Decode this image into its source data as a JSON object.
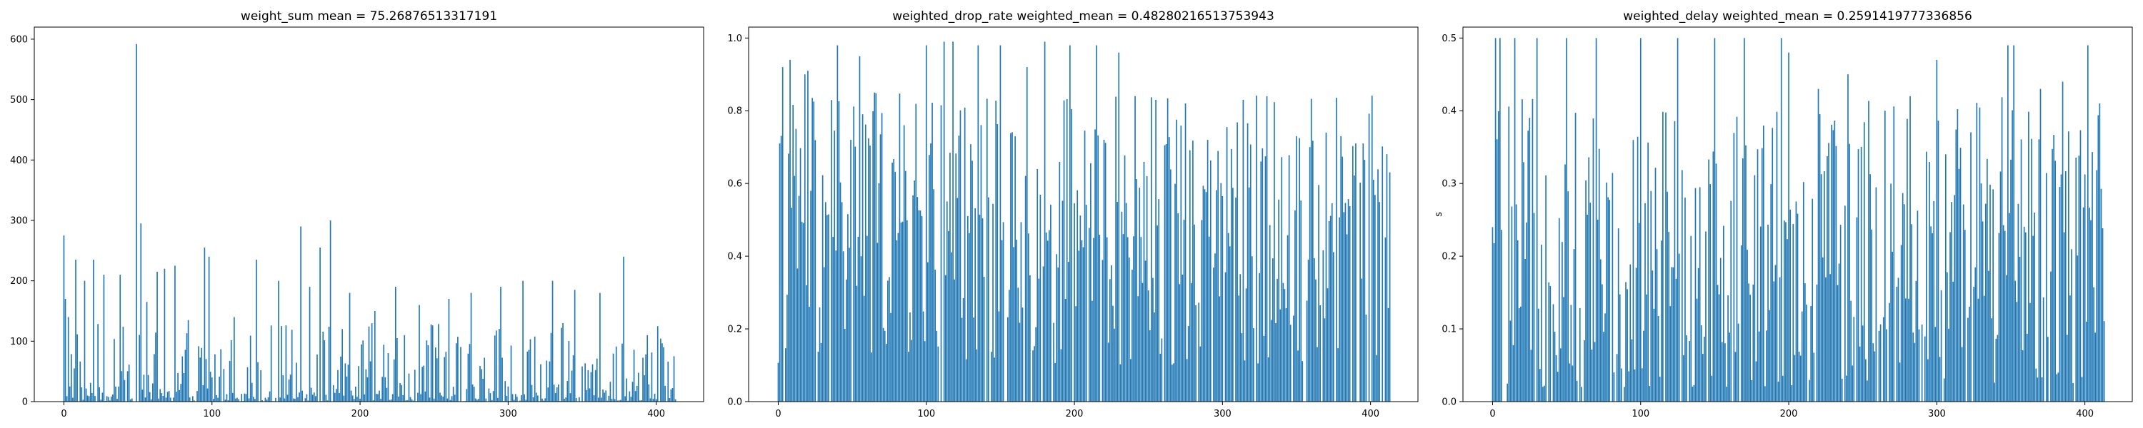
{
  "bar_color": "#1f77b4",
  "chart_data": [
    {
      "type": "bar",
      "title": "weight_sum mean = 75.26876513317191",
      "ylabel": "",
      "xlim": [
        -20,
        432
      ],
      "ylim": [
        0,
        620
      ],
      "xticks": [
        0,
        100,
        200,
        300,
        400
      ],
      "yticks": [
        0,
        100,
        200,
        300,
        400,
        500,
        600
      ],
      "n_bars": 414,
      "peaks": [
        {
          "x": 0,
          "y": 275
        },
        {
          "x": 1,
          "y": 170
        },
        {
          "x": 3,
          "y": 140
        },
        {
          "x": 8,
          "y": 235
        },
        {
          "x": 14,
          "y": 200
        },
        {
          "x": 20,
          "y": 235
        },
        {
          "x": 27,
          "y": 210
        },
        {
          "x": 38,
          "y": 210
        },
        {
          "x": 49,
          "y": 592
        },
        {
          "x": 52,
          "y": 295
        },
        {
          "x": 56,
          "y": 165
        },
        {
          "x": 63,
          "y": 215
        },
        {
          "x": 68,
          "y": 220
        },
        {
          "x": 75,
          "y": 225
        },
        {
          "x": 84,
          "y": 135
        },
        {
          "x": 95,
          "y": 255
        },
        {
          "x": 98,
          "y": 240
        },
        {
          "x": 115,
          "y": 140
        },
        {
          "x": 130,
          "y": 235
        },
        {
          "x": 145,
          "y": 200
        },
        {
          "x": 160,
          "y": 290
        },
        {
          "x": 166,
          "y": 190
        },
        {
          "x": 173,
          "y": 255
        },
        {
          "x": 180,
          "y": 300
        },
        {
          "x": 193,
          "y": 180
        },
        {
          "x": 210,
          "y": 150
        },
        {
          "x": 224,
          "y": 190
        },
        {
          "x": 240,
          "y": 160
        },
        {
          "x": 260,
          "y": 170
        },
        {
          "x": 275,
          "y": 180
        },
        {
          "x": 295,
          "y": 190
        },
        {
          "x": 310,
          "y": 200
        },
        {
          "x": 330,
          "y": 200
        },
        {
          "x": 345,
          "y": 185
        },
        {
          "x": 362,
          "y": 180
        },
        {
          "x": 378,
          "y": 240
        },
        {
          "x": 394,
          "y": 110
        },
        {
          "x": 405,
          "y": 90
        }
      ],
      "mean": 75.26876513317191
    },
    {
      "type": "bar",
      "title": "weighted_drop_rate weighted_mean = 0.48280216513753943",
      "ylabel": "",
      "xlim": [
        -20,
        432
      ],
      "ylim": [
        0,
        1.03
      ],
      "xticks": [
        0,
        100,
        200,
        300,
        400
      ],
      "yticks": [
        0.0,
        0.2,
        0.4,
        0.6,
        0.8,
        1.0
      ],
      "n_bars": 414,
      "peaks": [
        {
          "x": 1,
          "y": 0.71
        },
        {
          "x": 3,
          "y": 0.92
        },
        {
          "x": 8,
          "y": 0.94
        },
        {
          "x": 12,
          "y": 0.75
        },
        {
          "x": 18,
          "y": 0.9
        },
        {
          "x": 20,
          "y": 0.91
        },
        {
          "x": 40,
          "y": 0.98
        },
        {
          "x": 55,
          "y": 0.95
        },
        {
          "x": 65,
          "y": 0.85
        },
        {
          "x": 100,
          "y": 0.98
        },
        {
          "x": 112,
          "y": 0.99
        },
        {
          "x": 118,
          "y": 0.99
        },
        {
          "x": 135,
          "y": 0.98
        },
        {
          "x": 150,
          "y": 0.98
        },
        {
          "x": 168,
          "y": 0.92
        },
        {
          "x": 180,
          "y": 0.99
        },
        {
          "x": 197,
          "y": 0.98
        },
        {
          "x": 215,
          "y": 0.98
        },
        {
          "x": 230,
          "y": 0.96
        },
        {
          "x": 255,
          "y": 0.83
        },
        {
          "x": 275,
          "y": 0.82
        },
        {
          "x": 290,
          "y": 0.72
        },
        {
          "x": 330,
          "y": 0.84
        },
        {
          "x": 350,
          "y": 0.73
        },
        {
          "x": 370,
          "y": 0.74
        },
        {
          "x": 380,
          "y": 0.73
        },
        {
          "x": 395,
          "y": 0.71
        }
      ],
      "weighted_mean": 0.48280216513753943
    },
    {
      "type": "bar",
      "title": "weighted_delay weighted_mean = 0.2591419777336856",
      "ylabel": "s",
      "xlim": [
        -20,
        432
      ],
      "ylim": [
        0,
        0.515
      ],
      "xticks": [
        0,
        100,
        200,
        300,
        400
      ],
      "yticks": [
        0.0,
        0.1,
        0.2,
        0.3,
        0.4,
        0.5
      ],
      "n_bars": 414,
      "peaks": [
        {
          "x": 0,
          "y": 0.24
        },
        {
          "x": 2,
          "y": 0.5
        },
        {
          "x": 5,
          "y": 0.5
        },
        {
          "x": 15,
          "y": 0.5
        },
        {
          "x": 30,
          "y": 0.5
        },
        {
          "x": 50,
          "y": 0.5
        },
        {
          "x": 70,
          "y": 0.5
        },
        {
          "x": 100,
          "y": 0.5
        },
        {
          "x": 125,
          "y": 0.5
        },
        {
          "x": 150,
          "y": 0.5
        },
        {
          "x": 170,
          "y": 0.5
        },
        {
          "x": 195,
          "y": 0.5
        },
        {
          "x": 200,
          "y": 0.48
        },
        {
          "x": 220,
          "y": 0.43
        },
        {
          "x": 240,
          "y": 0.45
        },
        {
          "x": 265,
          "y": 0.4
        },
        {
          "x": 282,
          "y": 0.42
        },
        {
          "x": 300,
          "y": 0.47
        },
        {
          "x": 315,
          "y": 0.32
        },
        {
          "x": 330,
          "y": 0.3
        },
        {
          "x": 348,
          "y": 0.49
        },
        {
          "x": 352,
          "y": 0.49
        },
        {
          "x": 370,
          "y": 0.43
        },
        {
          "x": 385,
          "y": 0.44
        },
        {
          "x": 402,
          "y": 0.49
        },
        {
          "x": 410,
          "y": 0.41
        }
      ],
      "weighted_mean": 0.2591419777336856
    }
  ]
}
